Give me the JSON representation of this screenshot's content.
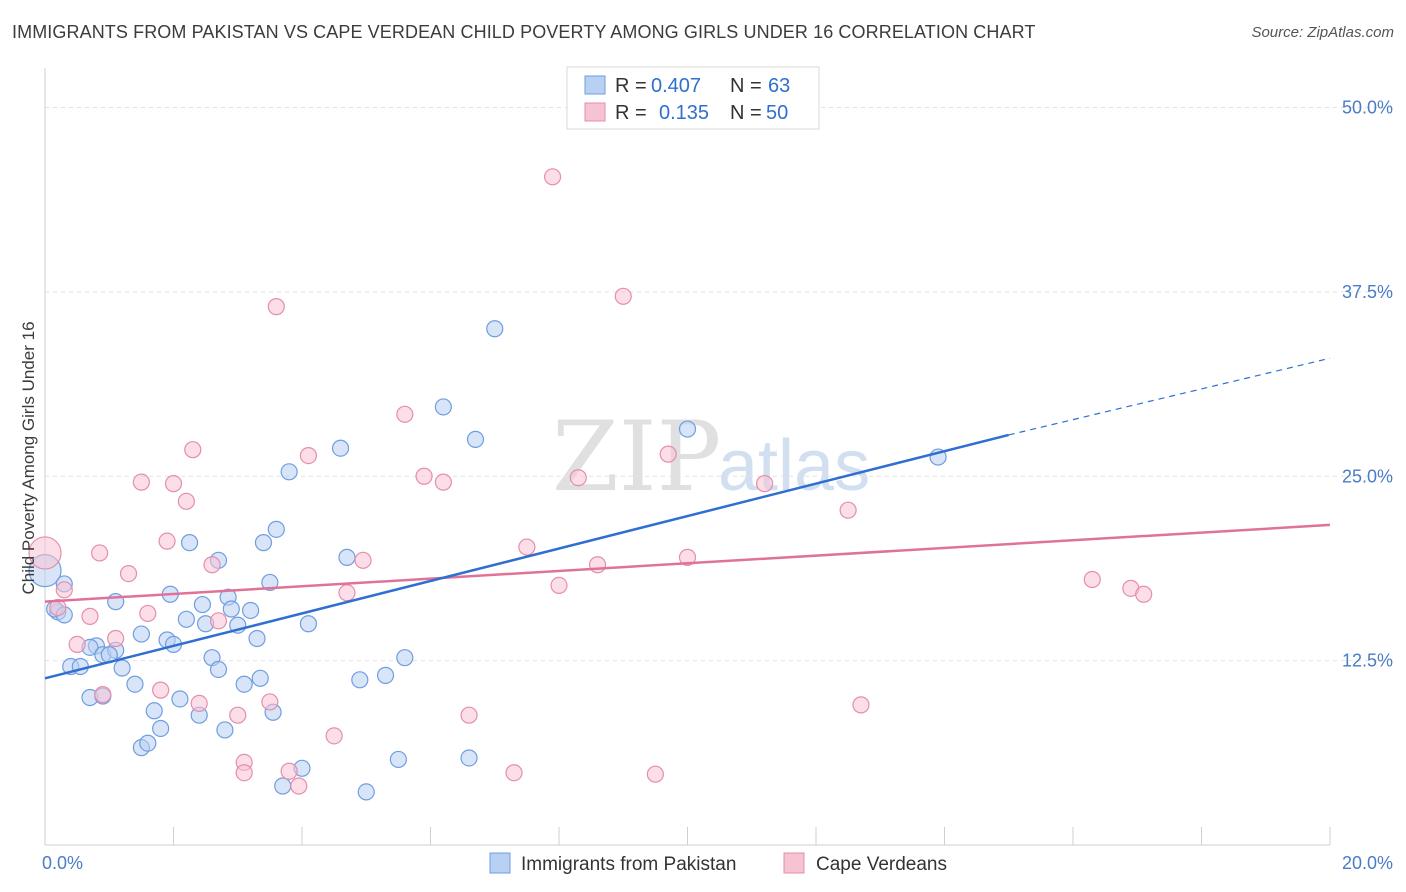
{
  "header": {
    "title": "IMMIGRANTS FROM PAKISTAN VS CAPE VERDEAN CHILD POVERTY AMONG GIRLS UNDER 16 CORRELATION CHART",
    "source": "Source: ZipAtlas.com"
  },
  "watermark": {
    "zip": "ZIP",
    "atlas": "atlas"
  },
  "legend": {
    "blue": {
      "r_label": "R =",
      "r_value": "0.407",
      "n_label": "N =",
      "n_value": "63"
    },
    "pink": {
      "r_label": "R =",
      "r_value": "0.135",
      "n_label": "N =",
      "n_value": "50"
    }
  },
  "colors": {
    "blue_fill": "#b8d0f2",
    "blue_stroke": "#6f9ee0",
    "blue_line": "#2f6fd0",
    "pink_fill": "#f7c3d3",
    "pink_stroke": "#e68eaa",
    "pink_line": "#e0729a",
    "grid": "#e3e3e3",
    "tick_text": "#4a7cc7"
  },
  "chart_data": {
    "type": "scatter",
    "title": "IMMIGRANTS FROM PAKISTAN VS CAPE VERDEAN CHILD POVERTY AMONG GIRLS UNDER 16 CORRELATION CHART",
    "xlabel": "",
    "ylabel": "Child Poverty Among Girls Under 16",
    "xlim": [
      0,
      20
    ],
    "ylim": [
      0,
      52
    ],
    "x_tick_labels": [
      "0.0%",
      "20.0%"
    ],
    "y_ticks": [
      12.5,
      25.0,
      37.5,
      50.0
    ],
    "y_tick_labels": [
      "12.5%",
      "25.0%",
      "37.5%",
      "50.0%"
    ],
    "grid": "horizontal dashed",
    "legend_position": "top-center",
    "series": [
      {
        "name": "Immigrants from Pakistan",
        "color": "#b8d0f2",
        "trend": {
          "x0": 0,
          "y0": 11.3,
          "x1": 15,
          "y1": 27.8,
          "dashed_to_x": 20,
          "dashed_to_y": 33.0
        },
        "points": [
          [
            0.0,
            18.6
          ],
          [
            0.2,
            15.8
          ],
          [
            0.3,
            17.7
          ],
          [
            0.15,
            16.0
          ],
          [
            0.4,
            12.1
          ],
          [
            0.55,
            12.1
          ],
          [
            0.8,
            13.5
          ],
          [
            0.7,
            13.4
          ],
          [
            0.9,
            12.9
          ],
          [
            1.1,
            13.2
          ],
          [
            1.2,
            12.0
          ],
          [
            1.0,
            12.9
          ],
          [
            1.1,
            16.5
          ],
          [
            0.7,
            10.0
          ],
          [
            0.9,
            10.1
          ],
          [
            1.4,
            10.9
          ],
          [
            1.5,
            6.6
          ],
          [
            1.6,
            6.9
          ],
          [
            1.8,
            7.9
          ],
          [
            1.7,
            9.1
          ],
          [
            1.5,
            14.3
          ],
          [
            1.9,
            13.9
          ],
          [
            2.0,
            13.6
          ],
          [
            2.1,
            9.9
          ],
          [
            1.95,
            17.0
          ],
          [
            2.2,
            15.3
          ],
          [
            2.25,
            20.5
          ],
          [
            2.4,
            8.8
          ],
          [
            2.45,
            16.3
          ],
          [
            2.5,
            15.0
          ],
          [
            2.6,
            12.7
          ],
          [
            2.7,
            11.9
          ],
          [
            2.8,
            7.8
          ],
          [
            2.85,
            16.8
          ],
          [
            2.9,
            16.0
          ],
          [
            3.0,
            14.9
          ],
          [
            3.1,
            10.9
          ],
          [
            3.2,
            15.9
          ],
          [
            3.3,
            14.0
          ],
          [
            3.35,
            11.3
          ],
          [
            3.5,
            17.8
          ],
          [
            3.55,
            9.0
          ],
          [
            3.6,
            21.4
          ],
          [
            3.7,
            4.0
          ],
          [
            3.8,
            25.3
          ],
          [
            3.4,
            20.5
          ],
          [
            4.0,
            5.2
          ],
          [
            4.1,
            15.0
          ],
          [
            4.6,
            26.9
          ],
          [
            4.7,
            19.5
          ],
          [
            4.9,
            11.2
          ],
          [
            5.0,
            3.6
          ],
          [
            5.3,
            11.5
          ],
          [
            5.5,
            5.8
          ],
          [
            5.6,
            12.7
          ],
          [
            6.2,
            29.7
          ],
          [
            6.6,
            5.9
          ],
          [
            6.7,
            27.5
          ],
          [
            7.0,
            35.0
          ],
          [
            10.0,
            28.2
          ],
          [
            13.9,
            26.3
          ],
          [
            0.3,
            15.6
          ],
          [
            2.7,
            19.3
          ]
        ]
      },
      {
        "name": "Cape Verdeans",
        "color": "#f7c3d3",
        "trend": {
          "x0": 0,
          "y0": 16.5,
          "x1": 20,
          "y1": 21.7
        },
        "points": [
          [
            0.0,
            19.8
          ],
          [
            0.3,
            17.3
          ],
          [
            0.5,
            13.6
          ],
          [
            0.7,
            15.5
          ],
          [
            0.85,
            19.8
          ],
          [
            0.9,
            10.2
          ],
          [
            1.1,
            14.0
          ],
          [
            1.3,
            18.4
          ],
          [
            1.5,
            24.6
          ],
          [
            1.6,
            15.7
          ],
          [
            1.8,
            10.5
          ],
          [
            1.9,
            20.6
          ],
          [
            2.0,
            24.5
          ],
          [
            2.2,
            23.3
          ],
          [
            2.3,
            26.8
          ],
          [
            2.4,
            9.6
          ],
          [
            2.6,
            19.0
          ],
          [
            2.7,
            15.2
          ],
          [
            3.0,
            8.8
          ],
          [
            3.1,
            5.6
          ],
          [
            3.1,
            4.9
          ],
          [
            3.5,
            9.7
          ],
          [
            3.6,
            36.5
          ],
          [
            3.8,
            5.0
          ],
          [
            3.95,
            4.0
          ],
          [
            4.1,
            26.4
          ],
          [
            4.5,
            7.4
          ],
          [
            4.7,
            17.1
          ],
          [
            4.95,
            19.3
          ],
          [
            5.6,
            29.2
          ],
          [
            5.9,
            25.0
          ],
          [
            6.2,
            24.6
          ],
          [
            6.6,
            8.8
          ],
          [
            7.3,
            4.9
          ],
          [
            7.5,
            20.2
          ],
          [
            7.9,
            45.3
          ],
          [
            8.0,
            17.6
          ],
          [
            8.3,
            24.9
          ],
          [
            8.6,
            19.0
          ],
          [
            9.0,
            37.2
          ],
          [
            9.5,
            4.8
          ],
          [
            9.7,
            26.5
          ],
          [
            10.0,
            19.5
          ],
          [
            11.2,
            24.5
          ],
          [
            12.5,
            22.7
          ],
          [
            12.7,
            9.5
          ],
          [
            16.3,
            18.0
          ],
          [
            16.9,
            17.4
          ],
          [
            17.1,
            17.0
          ],
          [
            0.2,
            16.1
          ]
        ]
      }
    ]
  },
  "bottom_legend": [
    {
      "label": "Immigrants from Pakistan"
    },
    {
      "label": "Cape Verdeans"
    }
  ]
}
